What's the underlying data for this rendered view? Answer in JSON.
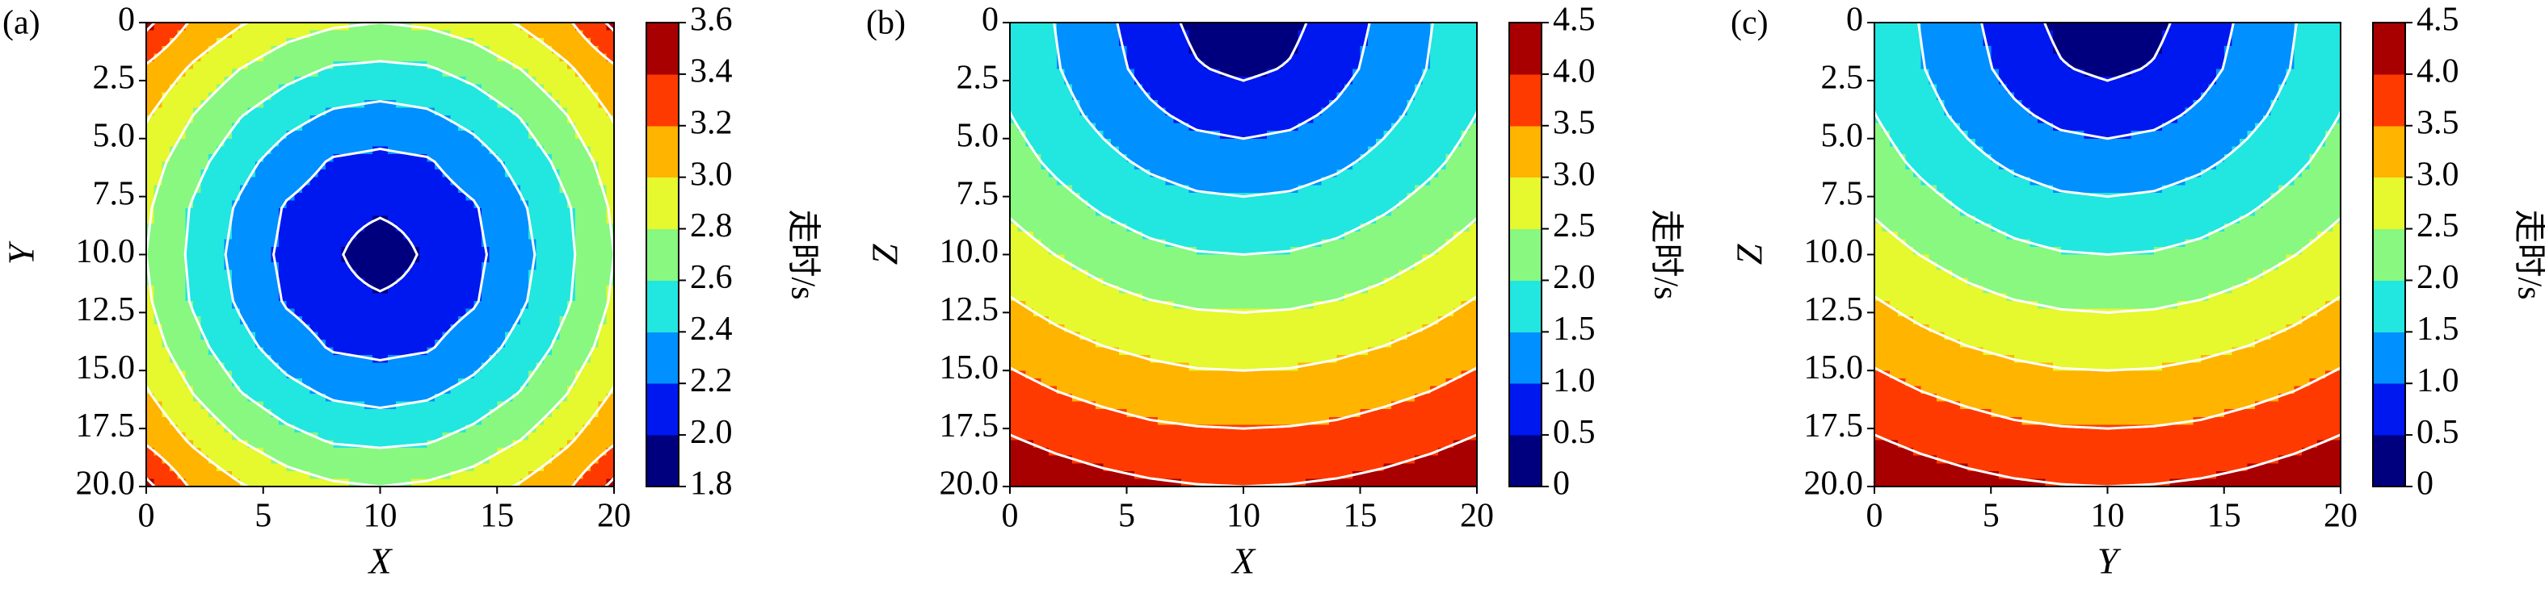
{
  "chart_data": [
    {
      "type": "contour",
      "panel_label": "(a)",
      "x_label": "X",
      "y_label": "Y",
      "colorbar_label": "走时/s",
      "x": [
        0,
        2,
        4,
        6,
        8,
        10,
        12,
        14,
        16,
        18,
        20
      ],
      "y": [
        0,
        2,
        4,
        6,
        8,
        10,
        12,
        14,
        16,
        18,
        20
      ],
      "z": [
        [
          3.45,
          3.17,
          3.02,
          2.9,
          2.83,
          2.8,
          2.83,
          2.9,
          3.02,
          3.17,
          3.45
        ],
        [
          3.17,
          2.97,
          2.8,
          2.67,
          2.58,
          2.56,
          2.58,
          2.67,
          2.8,
          2.97,
          3.17
        ],
        [
          3.02,
          2.8,
          2.61,
          2.47,
          2.37,
          2.33,
          2.37,
          2.47,
          2.61,
          2.8,
          3.02
        ],
        [
          2.9,
          2.67,
          2.47,
          2.3,
          2.18,
          2.15,
          2.18,
          2.3,
          2.47,
          2.67,
          2.9
        ],
        [
          2.83,
          2.58,
          2.37,
          2.18,
          2.09,
          2.04,
          2.09,
          2.18,
          2.37,
          2.58,
          2.83
        ],
        [
          2.8,
          2.56,
          2.33,
          2.15,
          2.04,
          1.85,
          2.04,
          2.15,
          2.33,
          2.56,
          2.8
        ],
        [
          2.83,
          2.58,
          2.37,
          2.18,
          2.09,
          2.04,
          2.09,
          2.18,
          2.37,
          2.58,
          2.83
        ],
        [
          2.9,
          2.67,
          2.47,
          2.3,
          2.18,
          2.15,
          2.18,
          2.3,
          2.47,
          2.67,
          2.9
        ],
        [
          3.02,
          2.8,
          2.61,
          2.47,
          2.37,
          2.33,
          2.37,
          2.47,
          2.61,
          2.8,
          3.02
        ],
        [
          3.17,
          2.97,
          2.8,
          2.67,
          2.58,
          2.56,
          2.58,
          2.67,
          2.8,
          2.97,
          3.17
        ],
        [
          3.45,
          3.17,
          3.02,
          2.9,
          2.83,
          2.8,
          2.83,
          2.9,
          3.02,
          3.17,
          3.45
        ]
      ],
      "xlim": [
        0,
        20
      ],
      "ylim": [
        0,
        20
      ],
      "y_inverted": true,
      "xticks": [
        0,
        5,
        10,
        15,
        20
      ],
      "yticks": [
        0,
        2.5,
        {
          "value": 5,
          "label": "5.0"
        },
        7.5,
        {
          "value": 10,
          "label": "10.0"
        },
        12.5,
        {
          "value": 15,
          "label": "15.0"
        },
        17.5,
        {
          "value": 20,
          "label": "20.0"
        }
      ],
      "cbar_ticks": [
        1.8,
        {
          "value": 2,
          "label": "2.0"
        },
        2.2,
        2.4,
        2.6,
        2.8,
        {
          "value": 3,
          "label": "3.0"
        },
        3.2,
        3.4,
        3.6
      ],
      "colors": [
        "#00007f",
        "#0018f0",
        "#0090ff",
        "#22e6e0",
        "#88f880",
        "#e6f82e",
        "#ffb400",
        "#ff3a00",
        "#a80000"
      ],
      "contour_color": "#ffffff"
    },
    {
      "type": "contour",
      "panel_label": "(b)",
      "x_label": "X",
      "y_label": "Z",
      "colorbar_label": "走时/s",
      "x": [
        0,
        2,
        4,
        6,
        8,
        10,
        12,
        14,
        16,
        18,
        20
      ],
      "y": [
        0,
        2,
        4,
        6,
        8,
        10,
        12,
        14,
        16,
        18,
        20
      ],
      "z": [
        [
          1.84,
          1.48,
          1.11,
          0.74,
          0.37,
          0,
          0.37,
          0.74,
          1.11,
          1.48,
          1.84
        ],
        [
          1.89,
          1.53,
          1.18,
          0.84,
          0.54,
          0.4,
          0.54,
          0.84,
          1.18,
          1.53,
          1.89
        ],
        [
          2.01,
          1.68,
          1.37,
          1.09,
          0.88,
          0.8,
          0.88,
          1.09,
          1.37,
          1.68,
          2.01
        ],
        [
          2.2,
          1.9,
          1.63,
          1.41,
          1.26,
          1.2,
          1.26,
          1.41,
          1.63,
          1.9,
          2.2
        ],
        [
          2.44,
          2.18,
          1.95,
          1.76,
          1.64,
          1.6,
          1.64,
          1.76,
          1.95,
          2.18,
          2.44
        ],
        [
          2.72,
          2.49,
          2.29,
          2.13,
          2.03,
          2.0,
          2.03,
          2.13,
          2.29,
          2.49,
          2.72
        ],
        [
          3.03,
          2.82,
          2.64,
          2.51,
          2.43,
          2.4,
          2.43,
          2.51,
          2.64,
          2.82,
          3.03
        ],
        [
          3.35,
          3.16,
          3.01,
          2.9,
          2.82,
          2.8,
          2.82,
          2.9,
          3.01,
          3.16,
          3.35
        ],
        [
          3.69,
          3.52,
          3.39,
          3.28,
          3.22,
          3.2,
          3.22,
          3.28,
          3.39,
          3.52,
          3.69
        ],
        [
          4.04,
          3.89,
          3.77,
          3.67,
          3.62,
          3.6,
          3.62,
          3.67,
          3.77,
          3.89,
          4.04
        ],
        [
          4.4,
          4.26,
          4.15,
          4.07,
          4.02,
          4.0,
          4.02,
          4.07,
          4.15,
          4.26,
          4.4
        ]
      ],
      "xlim": [
        0,
        20
      ],
      "ylim": [
        0,
        20
      ],
      "y_inverted": true,
      "xticks": [
        0,
        5,
        10,
        15,
        20
      ],
      "yticks": [
        0,
        2.5,
        {
          "value": 5,
          "label": "5.0"
        },
        7.5,
        {
          "value": 10,
          "label": "10.0"
        },
        12.5,
        {
          "value": 15,
          "label": "15.0"
        },
        17.5,
        {
          "value": 20,
          "label": "20.0"
        }
      ],
      "cbar_ticks": [
        0,
        0.5,
        {
          "value": 1,
          "label": "1.0"
        },
        1.5,
        {
          "value": 2,
          "label": "2.0"
        },
        2.5,
        {
          "value": 3,
          "label": "3.0"
        },
        3.5,
        {
          "value": 4,
          "label": "4.0"
        },
        4.5
      ],
      "colors": [
        "#00007f",
        "#0018f0",
        "#0090ff",
        "#22e6e0",
        "#88f880",
        "#e6f82e",
        "#ffb400",
        "#ff3a00",
        "#a80000"
      ],
      "contour_color": "#ffffff"
    },
    {
      "type": "contour",
      "panel_label": "(c)",
      "x_label": "Y",
      "y_label": "Z",
      "colorbar_label": "走时/s",
      "x": [
        0,
        2,
        4,
        6,
        8,
        10,
        12,
        14,
        16,
        18,
        20
      ],
      "y": [
        0,
        2,
        4,
        6,
        8,
        10,
        12,
        14,
        16,
        18,
        20
      ],
      "z": [
        [
          1.84,
          1.48,
          1.11,
          0.74,
          0.37,
          0,
          0.37,
          0.74,
          1.11,
          1.48,
          1.84
        ],
        [
          1.89,
          1.53,
          1.18,
          0.84,
          0.54,
          0.4,
          0.54,
          0.84,
          1.18,
          1.53,
          1.89
        ],
        [
          2.01,
          1.68,
          1.37,
          1.09,
          0.88,
          0.8,
          0.88,
          1.09,
          1.37,
          1.68,
          2.01
        ],
        [
          2.2,
          1.9,
          1.63,
          1.41,
          1.26,
          1.2,
          1.26,
          1.41,
          1.63,
          1.9,
          2.2
        ],
        [
          2.44,
          2.18,
          1.95,
          1.76,
          1.64,
          1.6,
          1.64,
          1.76,
          1.95,
          2.18,
          2.44
        ],
        [
          2.72,
          2.49,
          2.29,
          2.13,
          2.03,
          2.0,
          2.03,
          2.13,
          2.29,
          2.49,
          2.72
        ],
        [
          3.03,
          2.82,
          2.64,
          2.51,
          2.43,
          2.4,
          2.43,
          2.51,
          2.64,
          2.82,
          3.03
        ],
        [
          3.35,
          3.16,
          3.01,
          2.9,
          2.82,
          2.8,
          2.82,
          2.9,
          3.01,
          3.16,
          3.35
        ],
        [
          3.69,
          3.52,
          3.39,
          3.28,
          3.22,
          3.2,
          3.22,
          3.28,
          3.39,
          3.52,
          3.69
        ],
        [
          4.04,
          3.89,
          3.77,
          3.67,
          3.62,
          3.6,
          3.62,
          3.67,
          3.77,
          3.89,
          4.04
        ],
        [
          4.4,
          4.26,
          4.15,
          4.07,
          4.02,
          4.0,
          4.02,
          4.07,
          4.15,
          4.26,
          4.4
        ]
      ],
      "xlim": [
        0,
        20
      ],
      "ylim": [
        0,
        20
      ],
      "y_inverted": true,
      "xticks": [
        0,
        5,
        10,
        15,
        20
      ],
      "yticks": [
        0,
        2.5,
        {
          "value": 5,
          "label": "5.0"
        },
        7.5,
        {
          "value": 10,
          "label": "10.0"
        },
        12.5,
        {
          "value": 15,
          "label": "15.0"
        },
        17.5,
        {
          "value": 20,
          "label": "20.0"
        }
      ],
      "cbar_ticks": [
        0,
        0.5,
        {
          "value": 1,
          "label": "1.0"
        },
        1.5,
        {
          "value": 2,
          "label": "2.0"
        },
        2.5,
        {
          "value": 3,
          "label": "3.0"
        },
        3.5,
        {
          "value": 4,
          "label": "4.0"
        },
        4.5
      ],
      "colors": [
        "#00007f",
        "#0018f0",
        "#0090ff",
        "#22e6e0",
        "#88f880",
        "#e6f82e",
        "#ffb400",
        "#ff3a00",
        "#a80000"
      ],
      "contour_color": "#ffffff"
    }
  ]
}
